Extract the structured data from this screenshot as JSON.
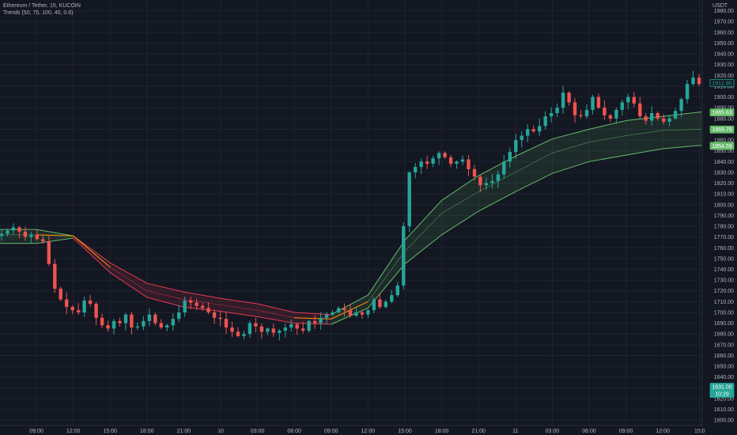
{
  "legend": {
    "symbol": "Ethereum / Tether, 15, KUCOIN",
    "indicator": "Trends (50, 75, 100, 40, 0.6)"
  },
  "price_axis": {
    "currency": "USDT"
  },
  "colors": {
    "background": "#131722",
    "grid": "#1f2330",
    "up": "#26a69a",
    "down": "#ef5350",
    "bull_band": "#66bb6a",
    "bear_band": "#e53950",
    "transition": "#ff9800",
    "axis_text": "#b2b5be"
  },
  "chart_data": {
    "type": "candlestick",
    "title": "Ethereum / Tether, 15, KUCOIN",
    "ylim": [
      1595,
      1990
    ],
    "y_ticks": [
      1600,
      1610,
      1620,
      1630,
      1640,
      1650,
      1660,
      1670,
      1680,
      1690,
      1700,
      1710,
      1720,
      1730,
      1740,
      1750,
      1760,
      1770,
      1780,
      1790,
      1800,
      1810,
      1820,
      1830,
      1840,
      1850,
      1860,
      1870,
      1880,
      1890,
      1900,
      1910,
      1920,
      1930,
      1940,
      1950,
      1960,
      1970,
      1980
    ],
    "x_ticks": [
      "09:00",
      "12:00",
      "15:00",
      "18:00",
      "21:00",
      "10",
      "03:00",
      "06:00",
      "09:00",
      "12:00",
      "15:00",
      "18:00",
      "21:00",
      "11",
      "03:00",
      "06:00",
      "09:00",
      "12:00",
      "15:0"
    ],
    "price_labels": [
      {
        "value": "1912.90",
        "color": "#26a69a",
        "style": "outline"
      },
      {
        "value": "1885.63",
        "color": "#66bb6a",
        "style": "fill"
      },
      {
        "value": "1869.79",
        "color": "#66bb6a",
        "style": "fill"
      },
      {
        "value": "1854.59",
        "color": "#66bb6a",
        "style": "fill"
      },
      {
        "value": "1631.00",
        "color": "#26a69a",
        "style": "fill"
      },
      {
        "value": "10:29",
        "color": "#26a69a",
        "style": "fill"
      }
    ],
    "band_anchor_x": [
      "09:00",
      "12:00",
      "15:00",
      "18:00",
      "21:00",
      "10",
      "03:00",
      "06:00",
      "09:00",
      "12:00",
      "15:00",
      "18:00",
      "21:00",
      "11",
      "03:00",
      "06:00",
      "09:00",
      "12:00",
      "15:0"
    ],
    "band_upper": [
      1777,
      1771,
      1746,
      1727,
      1719,
      1713,
      1708,
      1700,
      1698,
      1716,
      1767,
      1804,
      1827,
      1845,
      1861,
      1870,
      1878,
      1882,
      1886
    ],
    "band_mid": [
      1772,
      1771,
      1742,
      1720,
      1712,
      1707,
      1702,
      1695,
      1694,
      1710,
      1757,
      1792,
      1812,
      1830,
      1848,
      1858,
      1864,
      1869,
      1870
    ],
    "band_lower": [
      1764,
      1769,
      1737,
      1714,
      1705,
      1701,
      1696,
      1690,
      1689,
      1704,
      1745,
      1772,
      1794,
      1812,
      1829,
      1840,
      1846,
      1852,
      1855
    ],
    "close_path": [
      1773,
      1776,
      1779,
      1775,
      1770,
      1772,
      1768,
      1766,
      1745,
      1722,
      1712,
      1705,
      1702,
      1700,
      1711,
      1708,
      1695,
      1688,
      1685,
      1692,
      1690,
      1698,
      1686,
      1687,
      1692,
      1698,
      1690,
      1686,
      1688,
      1694,
      1700,
      1711,
      1709,
      1706,
      1704,
      1700,
      1695,
      1694,
      1686,
      1682,
      1678,
      1680,
      1690,
      1687,
      1682,
      1685,
      1681,
      1683,
      1686,
      1689,
      1685,
      1683,
      1692,
      1690,
      1695,
      1698,
      1700,
      1704,
      1702,
      1697,
      1700,
      1698,
      1702,
      1712,
      1705,
      1710,
      1716,
      1725,
      1780,
      1830,
      1835,
      1840,
      1838,
      1843,
      1848,
      1844,
      1838,
      1840,
      1842,
      1833,
      1826,
      1818,
      1820,
      1822,
      1828,
      1840,
      1849,
      1860,
      1864,
      1870,
      1868,
      1873,
      1882,
      1885,
      1890,
      1904,
      1895,
      1883,
      1882,
      1888,
      1900,
      1890,
      1883,
      1880,
      1888,
      1895,
      1900,
      1894,
      1882,
      1878,
      1885,
      1880,
      1877,
      1880,
      1887,
      1898,
      1912,
      1918,
      1912
    ]
  }
}
